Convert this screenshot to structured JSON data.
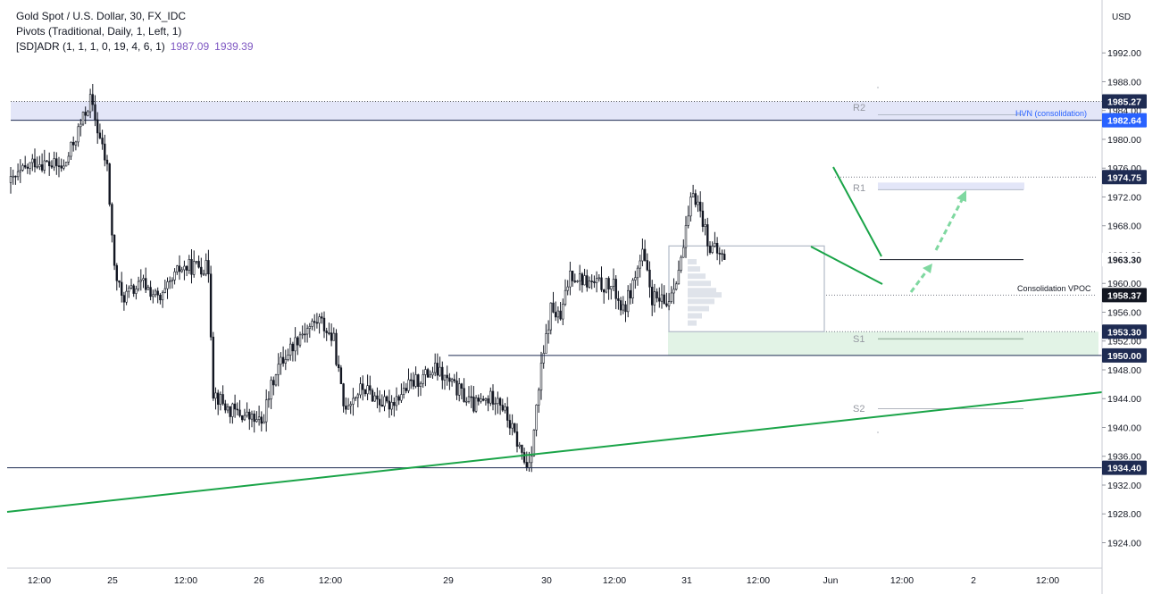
{
  "legend": {
    "symbol": "Gold Spot / U.S. Dollar, 30, FX_IDC",
    "pivots": "Pivots (Traditional, Daily, 1, Left, 1)",
    "adr": "[SD]ADR (1, 1, 1, 0, 19, 4, 6, 1)",
    "adr_high": "1987.09",
    "adr_low": "1939.39"
  },
  "colors": {
    "bull": "#ffffff",
    "bear": "#131722",
    "trend": "#1aa448",
    "hvn_zone": "#e3e6f8",
    "green_zone": "#e2f3e6",
    "dark_label": "#1e2b52",
    "blue_label": "#2962ff",
    "black_label": "#131722"
  },
  "chart_data": {
    "type": "candlestick",
    "currency": "USD",
    "y_range": [
      1920.5,
      1995.5
    ],
    "y_ticks": [
      "1924.00",
      "1928.00",
      "1932.00",
      "1936.00",
      "1940.00",
      "1944.00",
      "1948.00",
      "1952.00",
      "1956.00",
      "1960.00",
      "1964.00",
      "1968.00",
      "1972.00",
      "1976.00",
      "1980.00",
      "1984.00",
      "1988.00",
      "1992.00"
    ],
    "x_labels": [
      "12:00",
      "25",
      "12:00",
      "26",
      "12:00",
      "29",
      "30",
      "12:00",
      "31",
      "12:00",
      "Jun",
      "12:00",
      "2",
      "12:00"
    ],
    "anchors": [
      [
        0,
        1974
      ],
      [
        10,
        1977
      ],
      [
        22,
        1976
      ],
      [
        33,
        1985.5
      ],
      [
        40,
        1976
      ],
      [
        43,
        1962
      ],
      [
        46,
        1958
      ],
      [
        55,
        1960
      ],
      [
        62,
        1957.5
      ],
      [
        70,
        1962
      ],
      [
        78,
        1962.5
      ],
      [
        82,
        1962
      ],
      [
        84,
        1945
      ],
      [
        90,
        1942.5
      ],
      [
        98,
        1941.5
      ],
      [
        104,
        1940.5
      ],
      [
        110,
        1948
      ],
      [
        120,
        1953
      ],
      [
        128,
        1955
      ],
      [
        134,
        1952
      ],
      [
        138,
        1943
      ],
      [
        146,
        1945.5
      ],
      [
        156,
        1943
      ],
      [
        166,
        1946
      ],
      [
        176,
        1948
      ],
      [
        186,
        1945
      ],
      [
        192,
        1943
      ],
      [
        202,
        1944.5
      ],
      [
        210,
        1938
      ],
      [
        214,
        1934.5
      ],
      [
        216,
        1937
      ],
      [
        220,
        1948
      ],
      [
        224,
        1956.5
      ],
      [
        228,
        1955
      ],
      [
        232,
        1961.5
      ],
      [
        240,
        1960
      ],
      [
        250,
        1959.5
      ],
      [
        254,
        1956
      ],
      [
        258,
        1960
      ],
      [
        262,
        1964
      ],
      [
        266,
        1958
      ],
      [
        272,
        1957
      ],
      [
        278,
        1963
      ],
      [
        283,
        1973
      ],
      [
        286,
        1970
      ],
      [
        290,
        1965
      ],
      [
        294,
        1964
      ],
      [
        296,
        1963.3
      ]
    ],
    "levels": {
      "hvn_consolidation": "HVN (consolidation)",
      "consolidation_vpoc": "Consolidation VPOC",
      "r2": "R2",
      "r1": "R1",
      "s1": "S1",
      "s2": "S2"
    },
    "price_labels": [
      "1985.27",
      "1982.64",
      "1974.75",
      "1963.30",
      "1958.37",
      "1953.30",
      "1950.00",
      "1934.40"
    ]
  }
}
